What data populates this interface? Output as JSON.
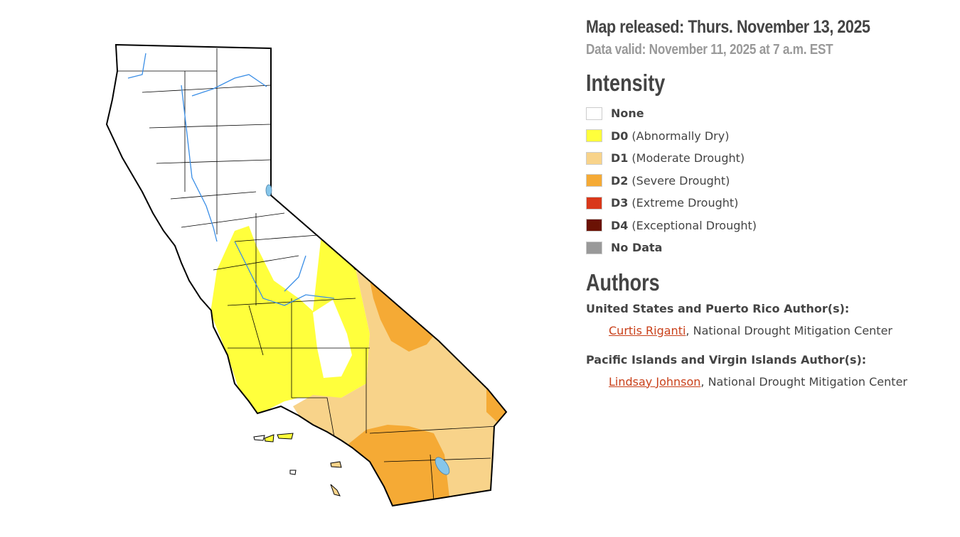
{
  "header": {
    "released": "Map released: Thurs. November 13, 2025",
    "valid": "Data valid: November 11, 2025 at 7 a.m. EST"
  },
  "legend": {
    "title": "Intensity",
    "items": [
      {
        "code": "None",
        "desc": "",
        "color": "#ffffff"
      },
      {
        "code": "D0",
        "desc": "(Abnormally Dry)",
        "color": "#ffff3c"
      },
      {
        "code": "D1",
        "desc": "(Moderate Drought)",
        "color": "#f8d38a"
      },
      {
        "code": "D2",
        "desc": "(Severe Drought)",
        "color": "#f5aa35"
      },
      {
        "code": "D3",
        "desc": "(Extreme Drought)",
        "color": "#d9381a"
      },
      {
        "code": "D4",
        "desc": "(Exceptional Drought)",
        "color": "#6b1204"
      },
      {
        "code": "No Data",
        "desc": "",
        "color": "#999999"
      }
    ]
  },
  "authors": {
    "title": "Authors",
    "groups": [
      {
        "label": "United States and Puerto Rico Author(s):",
        "name": "Curtis Riganti",
        "affiliation": ", National Drought Mitigation Center"
      },
      {
        "label": "Pacific Islands and Virgin Islands Author(s):",
        "name": "Lindsay Johnson",
        "affiliation": ", National Drought Mitigation Center"
      }
    ]
  },
  "map": {
    "region": "California",
    "water_color": "#86c6ea",
    "river_color": "#3a8ee6"
  }
}
